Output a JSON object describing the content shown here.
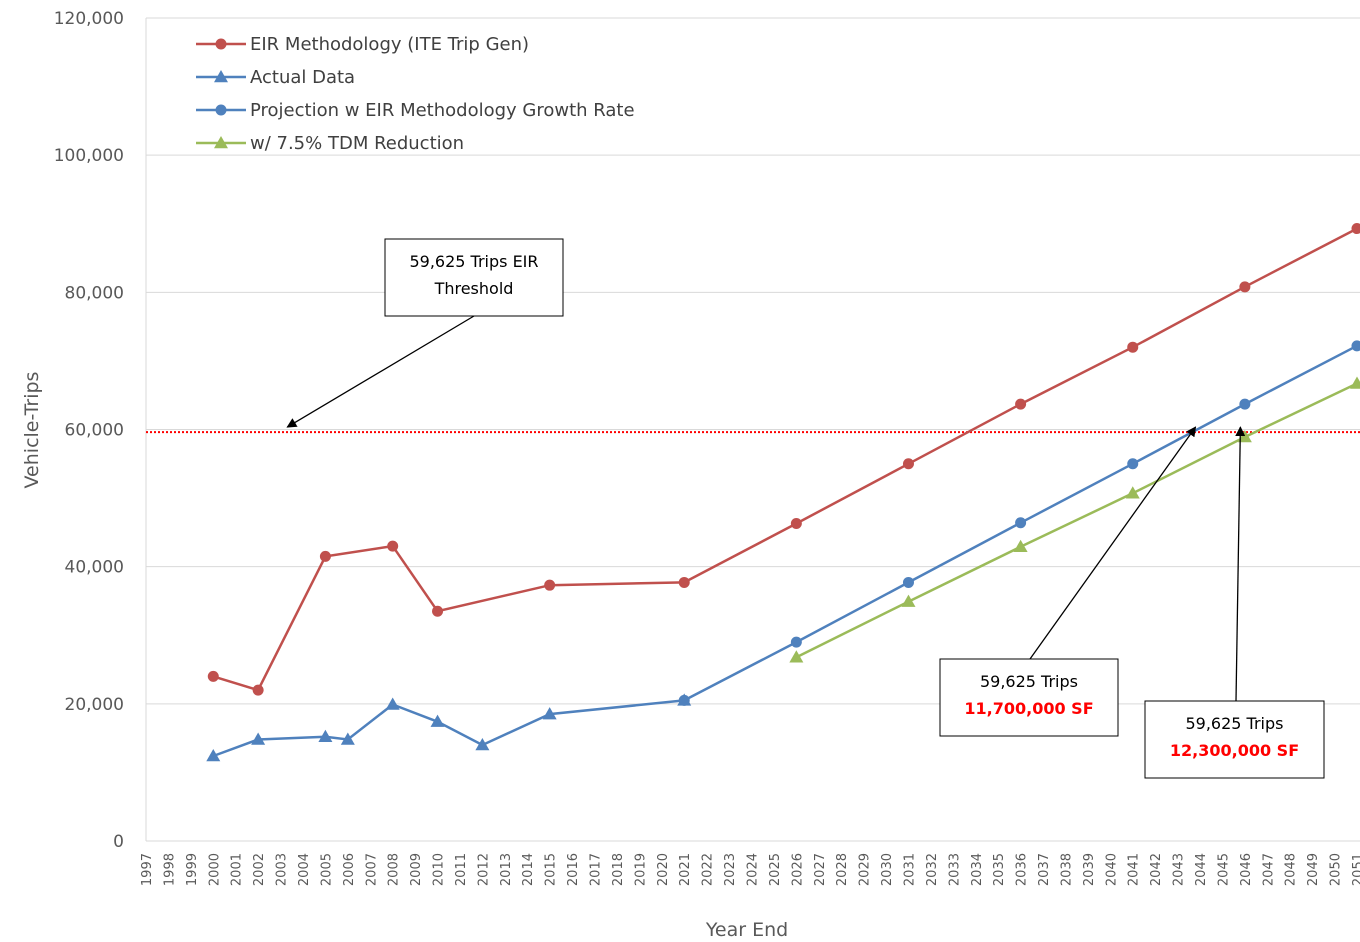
{
  "chart_data": {
    "type": "line",
    "xlabel": "Year End",
    "ylabel": "Vehicle-Trips",
    "ylim": [
      0,
      120000
    ],
    "yticks": [
      0,
      20000,
      40000,
      60000,
      80000,
      100000,
      120000
    ],
    "ytick_labels": [
      "0",
      "20,000",
      "40,000",
      "60,000",
      "80,000",
      "100,000",
      "120,000"
    ],
    "xlim": [
      1997,
      2051
    ],
    "x_tick_labels": [
      "1997",
      "1998",
      "1999",
      "2000",
      "2001",
      "2002",
      "2003",
      "2004",
      "2005",
      "2006",
      "2007",
      "2008",
      "2009",
      "2010",
      "2011",
      "2012",
      "2013",
      "2014",
      "2015",
      "2016",
      "2017",
      "2018",
      "2019",
      "2020",
      "2021",
      "2022",
      "2023",
      "2024",
      "2025",
      "2026",
      "2027",
      "2028",
      "2029",
      "2030",
      "2031",
      "2032",
      "2033",
      "2034",
      "2035",
      "2036",
      "2037",
      "2038",
      "2039",
      "2040",
      "2041",
      "2042",
      "2043",
      "2044",
      "2045",
      "2046",
      "2047",
      "2048",
      "2049",
      "2050",
      "2051"
    ],
    "grid": "horizontal",
    "legend_position": "top-left",
    "series": [
      {
        "name": "EIR Methodology (ITE Trip Gen)",
        "color": "#c0504d",
        "marker": "circle",
        "x": [
          2000,
          2002,
          2005,
          2008,
          2010,
          2015,
          2021,
          2026,
          2031,
          2036,
          2041,
          2046,
          2051
        ],
        "y": [
          24000,
          22000,
          41500,
          43000,
          33500,
          37300,
          37700,
          46300,
          55000,
          63700,
          72000,
          80800,
          89300
        ]
      },
      {
        "name": "Actual Data",
        "color": "#4f81bd",
        "marker": "triangle",
        "x": [
          2000,
          2002,
          2005,
          2006,
          2008,
          2010,
          2012,
          2015,
          2021
        ],
        "y": [
          12400,
          14800,
          15200,
          14800,
          19900,
          17400,
          14000,
          18500,
          20500
        ]
      },
      {
        "name": "Projection w EIR Methodology Growth Rate",
        "color": "#4f81bd",
        "marker": "circle",
        "x": [
          2021,
          2026,
          2031,
          2036,
          2041,
          2046,
          2051
        ],
        "y": [
          20500,
          29000,
          37700,
          46400,
          55000,
          63700,
          72200
        ]
      },
      {
        "name": "w/ 7.5% TDM Reduction",
        "color": "#9bbb59",
        "marker": "triangle",
        "x": [
          2026,
          2031,
          2036,
          2041,
          2046,
          2051
        ],
        "y": [
          26800,
          34900,
          42900,
          50700,
          58900,
          66700
        ]
      }
    ],
    "threshold": {
      "value": 59625,
      "color": "#ff0000"
    },
    "annotations": [
      {
        "id": "eir",
        "lines": [
          "59,625 Trips EIR",
          "Threshold"
        ],
        "red_line": "",
        "arrow_to": [
          2003.3,
          59625
        ]
      },
      {
        "id": "sf1",
        "lines": [
          "59,625 Trips"
        ],
        "red_line": "11,700,000  SF",
        "arrow_to": [
          2043.8,
          59625
        ]
      },
      {
        "id": "sf2",
        "lines": [
          "59,625 Trips"
        ],
        "red_line": "12,300,000  SF",
        "arrow_to": [
          2045.8,
          59625
        ]
      }
    ]
  }
}
